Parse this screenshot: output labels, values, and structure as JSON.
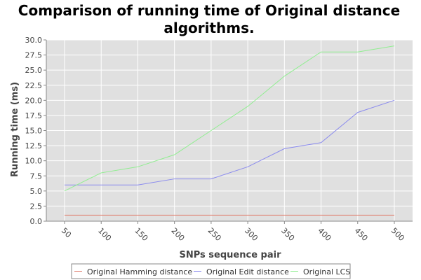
{
  "chart_data": {
    "type": "line",
    "title_lines": [
      "Comparison of running time of Original distance",
      "algorithms."
    ],
    "xlabel": "SNPs sequence pair",
    "ylabel": "Running time (ms)",
    "categories": [
      "50",
      "100",
      "150",
      "200",
      "250",
      "300",
      "350",
      "400",
      "450",
      "500"
    ],
    "ylim": [
      0,
      30
    ],
    "yticks": [
      "0.0",
      "2.5",
      "5.0",
      "7.5",
      "10.0",
      "12.5",
      "15.0",
      "17.5",
      "20.0",
      "22.5",
      "25.0",
      "27.5",
      "30.0"
    ],
    "grid": true,
    "legend_position": "bottom",
    "plot_background": "#e0e0e0",
    "series": [
      {
        "name": "Original Hamming distance",
        "color": "#e08070",
        "values": [
          1,
          1,
          1,
          1,
          1,
          1,
          1,
          1,
          1,
          1
        ]
      },
      {
        "name": "Original Edit distance",
        "color": "#8a8aee",
        "values": [
          6,
          6,
          6,
          7,
          7,
          9,
          12,
          13,
          18,
          20
        ]
      },
      {
        "name": "Original LCS",
        "color": "#90ee90",
        "values": [
          5,
          8,
          9,
          11,
          15,
          19,
          24,
          28,
          28,
          29
        ]
      }
    ]
  }
}
